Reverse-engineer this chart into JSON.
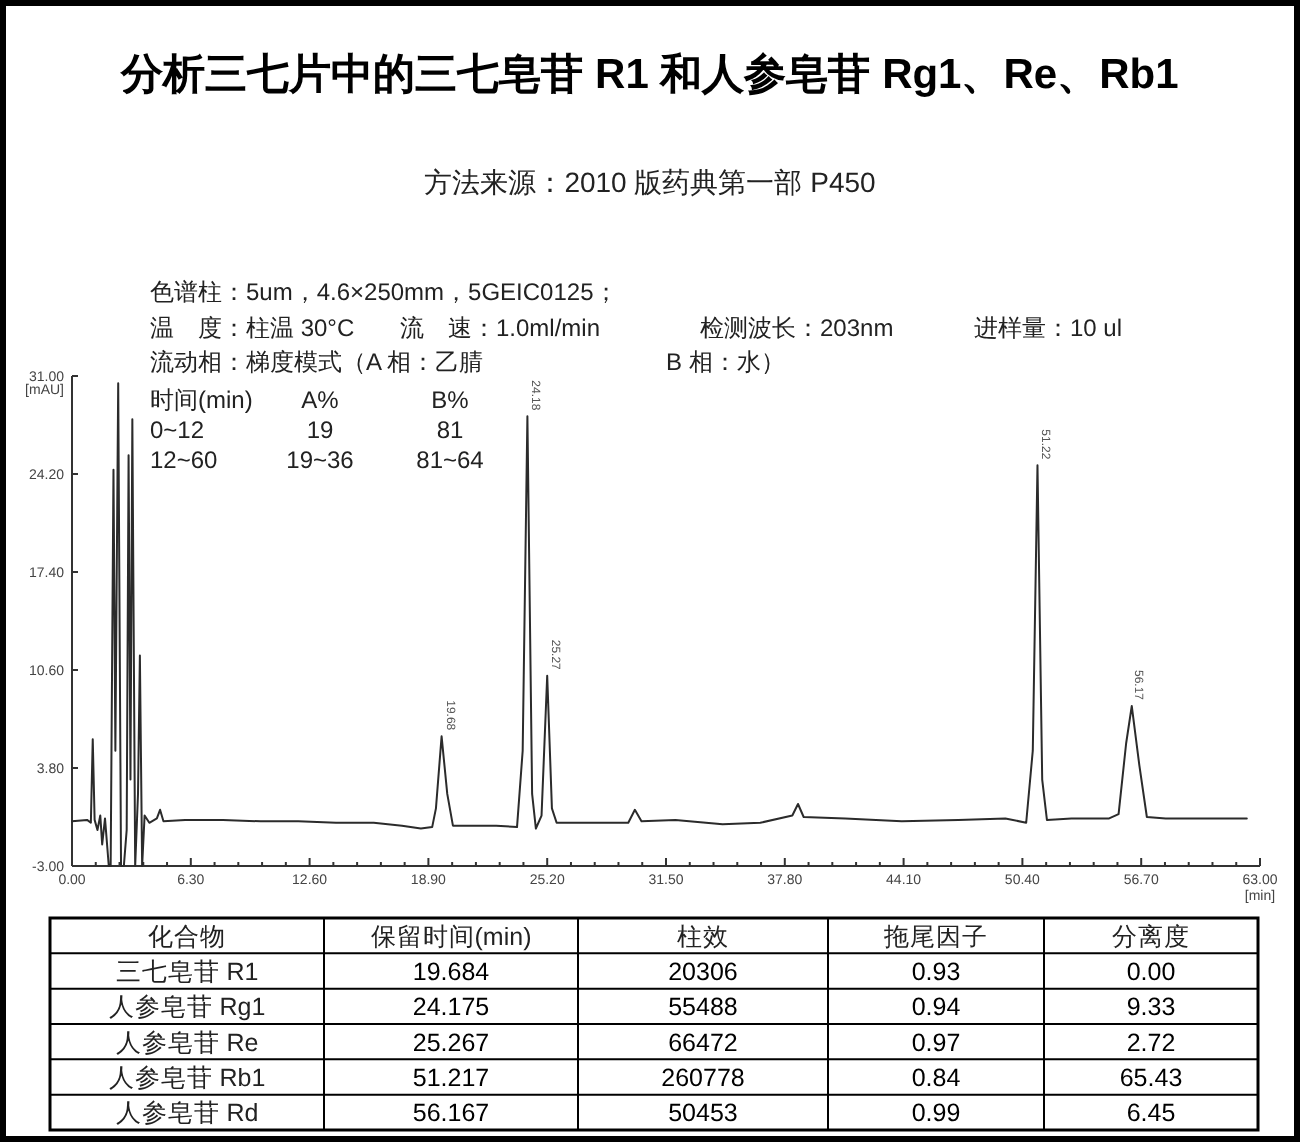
{
  "chart_data": [
    {
      "type": "line",
      "title": "分析三七片中的三七皂苷 R1 和人参皂苷 Rg1、Re、Rb1",
      "subtitle": "方法来源：2010 版药典第一部 P450",
      "xlabel": "[min]",
      "ylabel": "[mAU]",
      "annotations": [
        "色谱柱：5um，4.6×250mm，5GEIC0125；",
        "温　度：柱温 30°C",
        "流　速：1.0ml/min",
        "检测波长：203nm",
        "进样量：10 ul",
        "流动相：梯度模式（A 相：乙腈",
        "B 相：水）",
        "时间(min)",
        "A%",
        "B%",
        "0~12",
        "19",
        "81",
        "12~60",
        "19~36",
        "81~64",
        {
          "text": "19.68",
          "x": 19.684,
          "y": 6.0
        },
        {
          "text": "24.18",
          "x": 24.175,
          "y": 28.2
        },
        {
          "text": "25.27",
          "x": 25.267,
          "y": 10.2
        },
        {
          "text": "51.22",
          "x": 51.217,
          "y": 24.8
        },
        {
          "text": "56.17",
          "x": 56.167,
          "y": 8.1
        }
      ],
      "x": [
        0.0,
        0.8,
        1.0,
        1.1,
        1.2,
        1.35,
        1.5,
        1.6,
        1.75,
        1.95,
        2.05,
        2.2,
        2.3,
        2.45,
        2.6,
        2.75,
        2.9,
        3.0,
        3.1,
        3.2,
        3.35,
        3.5,
        3.6,
        3.72,
        3.85,
        4.1,
        4.5,
        4.67,
        4.85,
        6.0,
        8.0,
        10.0,
        12.0,
        14.0,
        16.0,
        17.5,
        18.5,
        19.1,
        19.3,
        19.6,
        19.9,
        20.2,
        21.0,
        22.5,
        23.6,
        23.9,
        24.15,
        24.4,
        24.6,
        24.9,
        25.2,
        25.45,
        25.7,
        27.0,
        29.5,
        29.85,
        30.2,
        32.0,
        34.5,
        36.5,
        38.2,
        38.5,
        38.8,
        41.0,
        44.0,
        47.0,
        49.5,
        50.6,
        50.95,
        51.2,
        51.45,
        51.7,
        53.0,
        55.0,
        55.5,
        55.9,
        56.2,
        56.6,
        57.0,
        58.0,
        60.0,
        62.3
      ],
      "series": [
        {
          "color": "#2b2b2b",
          "values": [
            0.1,
            0.2,
            0.0,
            5.8,
            0.2,
            -0.5,
            0.5,
            -1.5,
            0.3,
            -3.0,
            -3.0,
            24.5,
            5.0,
            30.5,
            -3.0,
            -3.0,
            -0.5,
            25.5,
            3.0,
            28.0,
            -3.0,
            2.0,
            11.6,
            -3.0,
            0.5,
            0.0,
            0.3,
            0.9,
            0.1,
            0.2,
            0.2,
            0.1,
            0.1,
            0.0,
            0.0,
            -0.2,
            -0.4,
            -0.3,
            1.0,
            6.0,
            2.0,
            -0.2,
            -0.2,
            -0.2,
            -0.3,
            5.0,
            28.2,
            2.0,
            -0.4,
            0.5,
            10.2,
            1.0,
            0.0,
            0.0,
            0.0,
            0.9,
            0.1,
            0.2,
            -0.1,
            0.0,
            0.5,
            1.3,
            0.4,
            0.3,
            0.1,
            0.2,
            0.3,
            0.0,
            5.0,
            24.8,
            3.0,
            0.2,
            0.3,
            0.3,
            0.6,
            5.5,
            8.1,
            4.0,
            0.4,
            0.3,
            0.3,
            0.3
          ]
        }
      ],
      "xlim": [
        0,
        63
      ],
      "xticks": [
        {
          "value": 0,
          "label": "0.00"
        },
        {
          "value": 1.26,
          "label": null
        },
        {
          "value": 2.52,
          "label": null
        },
        {
          "value": 3.78,
          "label": null
        },
        {
          "value": 5.04,
          "label": null
        },
        {
          "value": 6.3,
          "label": "6.30"
        },
        {
          "value": 7.56,
          "label": null
        },
        {
          "value": 8.82,
          "label": null
        },
        {
          "value": 10.08,
          "label": null
        },
        {
          "value": 11.34,
          "label": null
        },
        {
          "value": 12.6,
          "label": "12.60"
        },
        {
          "value": 13.86,
          "label": null
        },
        {
          "value": 15.12,
          "label": null
        },
        {
          "value": 16.38,
          "label": null
        },
        {
          "value": 17.64,
          "label": null
        },
        {
          "value": 18.9,
          "label": "18.90"
        },
        {
          "value": 20.16,
          "label": null
        },
        {
          "value": 21.42,
          "label": null
        },
        {
          "value": 22.68,
          "label": null
        },
        {
          "value": 23.94,
          "label": null
        },
        {
          "value": 25.2,
          "label": "25.20"
        },
        {
          "value": 26.46,
          "label": null
        },
        {
          "value": 27.72,
          "label": null
        },
        {
          "value": 28.98,
          "label": null
        },
        {
          "value": 30.24,
          "label": null
        },
        {
          "value": 31.5,
          "label": "31.50"
        },
        {
          "value": 32.76,
          "label": null
        },
        {
          "value": 34.02,
          "label": null
        },
        {
          "value": 35.28,
          "label": null
        },
        {
          "value": 36.54,
          "label": null
        },
        {
          "value": 37.8,
          "label": "37.80"
        },
        {
          "value": 39.06,
          "label": null
        },
        {
          "value": 40.32,
          "label": null
        },
        {
          "value": 41.58,
          "label": null
        },
        {
          "value": 42.84,
          "label": null
        },
        {
          "value": 44.1,
          "label": "44.10"
        },
        {
          "value": 45.36,
          "label": null
        },
        {
          "value": 46.62,
          "label": null
        },
        {
          "value": 47.88,
          "label": null
        },
        {
          "value": 49.14,
          "label": null
        },
        {
          "value": 50.4,
          "label": "50.40"
        },
        {
          "value": 51.66,
          "label": null
        },
        {
          "value": 52.92,
          "label": null
        },
        {
          "value": 54.18,
          "label": null
        },
        {
          "value": 55.44,
          "label": null
        },
        {
          "value": 56.7,
          "label": "56.70"
        },
        {
          "value": 57.96,
          "label": null
        },
        {
          "value": 59.22,
          "label": null
        },
        {
          "value": 60.48,
          "label": null
        },
        {
          "value": 61.74,
          "label": null
        },
        {
          "value": 63,
          "label": "63.00"
        }
      ],
      "ylim": [
        -3,
        31
      ],
      "yticks": [
        {
          "value": -3,
          "label": "-3.00"
        },
        {
          "value": 3.8,
          "label": "3.80"
        },
        {
          "value": 10.6,
          "label": "10.60"
        },
        {
          "value": 17.4,
          "label": "17.40"
        },
        {
          "value": 24.2,
          "label": "24.20"
        },
        {
          "value": 31,
          "label": "31.00"
        }
      ]
    },
    {
      "type": "other",
      "ylabel": "化合物",
      "categories": [
        "保留时间(min)",
        "柱效",
        "拖尾因子",
        "分离度"
      ],
      "y_categories": [
        "三七皂苷 R1",
        "人参皂苷 Rg1",
        "人参皂苷 Re",
        "人参皂苷 Rb1",
        "人参皂苷 Rd"
      ],
      "cell_labels": [
        [
          "19.684",
          "20306",
          "0.93",
          "0.00"
        ],
        [
          "24.175",
          "55488",
          "0.94",
          "9.33"
        ],
        [
          "25.267",
          "66472",
          "0.97",
          "2.72"
        ],
        [
          "51.217",
          "260778",
          "0.84",
          "65.43"
        ],
        [
          "56.167",
          "50453",
          "0.99",
          "6.45"
        ]
      ]
    }
  ]
}
